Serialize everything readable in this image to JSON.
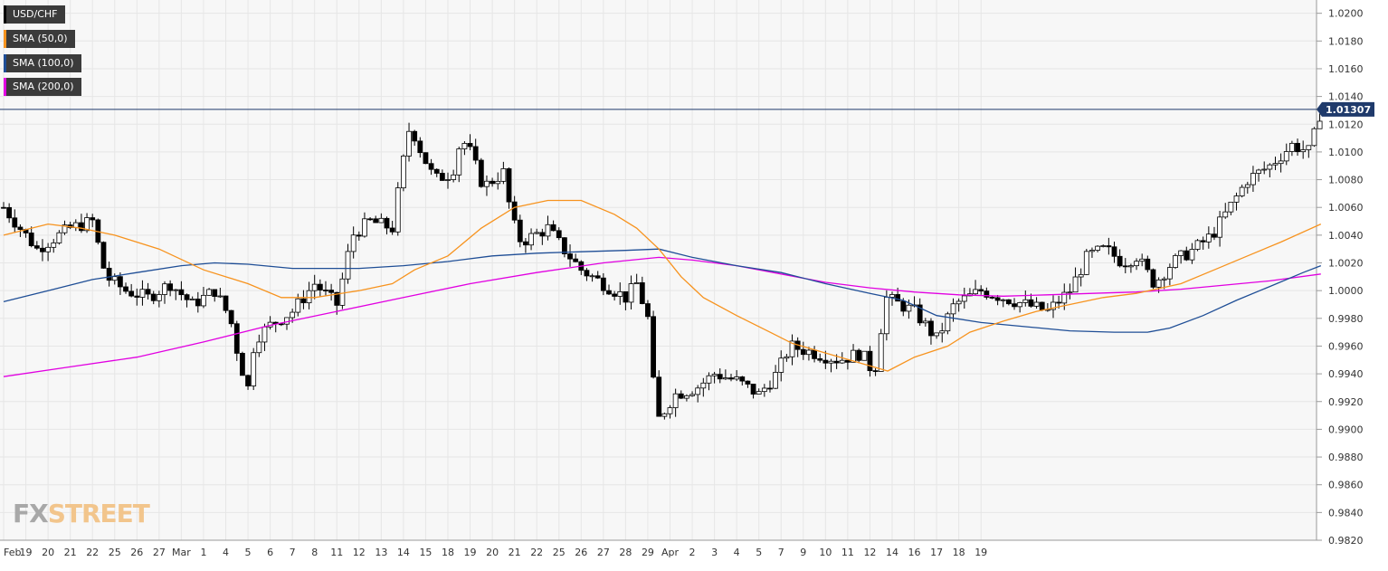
{
  "chart_data": {
    "type": "candlestick",
    "symbol": "USD/CHF",
    "ylim": [
      0.982,
      1.0205
    ],
    "y_ticks": [
      "1.0200",
      "1.0180",
      "1.0160",
      "1.0140",
      "1.0120",
      "1.0100",
      "1.0080",
      "1.0060",
      "1.0040",
      "1.0020",
      "1.0000",
      "0.9980",
      "0.9960",
      "0.9940",
      "0.9920",
      "0.9900",
      "0.9880",
      "0.9860",
      "0.9840",
      "0.9820"
    ],
    "x_ticks": [
      "Feb",
      "19",
      "20",
      "21",
      "22",
      "25",
      "26",
      "27",
      "Mar",
      "1",
      "4",
      "5",
      "6",
      "7",
      "8",
      "11",
      "12",
      "13",
      "14",
      "15",
      "18",
      "19",
      "20",
      "21",
      "22",
      "25",
      "26",
      "27",
      "28",
      "29",
      "Apr",
      "2",
      "3",
      "4",
      "5",
      "7",
      "9",
      "10",
      "11",
      "12",
      "14",
      "16",
      "17",
      "18",
      "19"
    ],
    "current_price": 1.01307,
    "current_price_label": "1.01307",
    "legend": [
      "USD/CHF",
      "SMA (50,0)",
      "SMA (100,0)",
      "SMA (200,0)"
    ],
    "colors": {
      "sma50": "#f7931e",
      "sma100": "#1f4e96",
      "sma200": "#e100e1",
      "price_line": "#1f3a6b"
    },
    "price_path": [
      [
        0,
        1.006
      ],
      [
        1.5,
        1.003
      ],
      [
        3,
        1.0045
      ],
      [
        4,
        1.005
      ],
      [
        4.6,
        1.001
      ],
      [
        5.5,
        1.0
      ],
      [
        6.5,
        0.9995
      ],
      [
        7.5,
        1.0005
      ],
      [
        8.5,
        0.999
      ],
      [
        9.5,
        1.0
      ],
      [
        10.2,
        0.998
      ],
      [
        10.6,
        0.995
      ],
      [
        11.0,
        0.993
      ],
      [
        11.3,
        0.9965
      ],
      [
        12,
        0.9975
      ],
      [
        13,
        0.9985
      ],
      [
        14,
        1.0005
      ],
      [
        15,
        0.999
      ],
      [
        15.7,
        1.004
      ],
      [
        16.5,
        1.005
      ],
      [
        17.5,
        1.0045
      ],
      [
        17.9,
        1.0085
      ],
      [
        18.3,
        1.012
      ],
      [
        18.8,
        1.01
      ],
      [
        19.4,
        1.008
      ],
      [
        20.2,
        1.0085
      ],
      [
        20.6,
        1.011
      ],
      [
        21.0,
        1.01
      ],
      [
        21.6,
        1.0075
      ],
      [
        22.5,
        1.0085
      ],
      [
        22.9,
        1.005
      ],
      [
        23.3,
        1.0035
      ],
      [
        24.5,
        1.0045
      ],
      [
        25.2,
        1.003
      ],
      [
        26.0,
        1.0015
      ],
      [
        27.0,
        1.0005
      ],
      [
        28.0,
        0.9995
      ],
      [
        28.5,
        1.0005
      ],
      [
        29.0,
        0.998
      ],
      [
        29.4,
        0.9905
      ],
      [
        30.2,
        0.9925
      ],
      [
        31.2,
        0.993
      ],
      [
        32.0,
        0.994
      ],
      [
        33.0,
        0.9935
      ],
      [
        34.0,
        0.9925
      ],
      [
        34.8,
        0.994
      ],
      [
        35.4,
        0.996
      ],
      [
        36.5,
        0.9955
      ],
      [
        37.6,
        0.995
      ],
      [
        38.6,
        0.9955
      ],
      [
        39.2,
        0.994
      ],
      [
        39.7,
        0.9995
      ],
      [
        41.0,
        0.9985
      ],
      [
        42.0,
        0.9965
      ],
      [
        42.8,
        0.999
      ],
      [
        44.0,
        1.0
      ],
      [
        45.0,
        0.9995
      ],
      [
        46.0,
        0.999
      ],
      [
        47.0,
        0.9985
      ],
      [
        48.0,
        1.0
      ],
      [
        48.8,
        1.0025
      ],
      [
        49.6,
        1.003
      ],
      [
        50.4,
        1.002
      ],
      [
        51.0,
        1.0025
      ],
      [
        51.8,
        1.0005
      ],
      [
        52.6,
        1.002
      ],
      [
        53.6,
        1.003
      ],
      [
        54.4,
        1.004
      ],
      [
        55.2,
        1.006
      ],
      [
        56.0,
        1.008
      ],
      [
        57.0,
        1.009
      ],
      [
        58.0,
        1.0105
      ],
      [
        58.8,
        1.01
      ],
      [
        59.3,
        1.013
      ]
    ],
    "sma50_path": [
      [
        0,
        1.004
      ],
      [
        2,
        1.0048
      ],
      [
        3.5,
        1.0045
      ],
      [
        5,
        1.004
      ],
      [
        7,
        1.003
      ],
      [
        9,
        1.0015
      ],
      [
        11,
        1.0005
      ],
      [
        12.5,
        0.9995
      ],
      [
        14,
        0.9995
      ],
      [
        16,
        1.0
      ],
      [
        17.5,
        1.0005
      ],
      [
        18.5,
        1.0015
      ],
      [
        20,
        1.0025
      ],
      [
        21.5,
        1.0045
      ],
      [
        23,
        1.006
      ],
      [
        24.5,
        1.0065
      ],
      [
        26,
        1.0065
      ],
      [
        27.5,
        1.0055
      ],
      [
        28.5,
        1.0045
      ],
      [
        29.5,
        1.003
      ],
      [
        30.5,
        1.001
      ],
      [
        31.5,
        0.9995
      ],
      [
        33,
        0.9982
      ],
      [
        34.5,
        0.997
      ],
      [
        35.5,
        0.9962
      ],
      [
        37,
        0.9955
      ],
      [
        38.5,
        0.9948
      ],
      [
        39.8,
        0.9942
      ],
      [
        41,
        0.9952
      ],
      [
        42.5,
        0.996
      ],
      [
        43.5,
        0.997
      ],
      [
        45,
        0.9978
      ],
      [
        46.5,
        0.9985
      ],
      [
        48,
        0.999
      ],
      [
        49.5,
        0.9995
      ],
      [
        51,
        0.9998
      ],
      [
        53,
        1.0005
      ],
      [
        54.5,
        1.0015
      ],
      [
        56,
        1.0025
      ],
      [
        57.5,
        1.0035
      ],
      [
        59.3,
        1.0048
      ]
    ],
    "sma100_path": [
      [
        0,
        0.9992
      ],
      [
        2,
        1.0
      ],
      [
        4,
        1.0008
      ],
      [
        6,
        1.0013
      ],
      [
        8,
        1.0018
      ],
      [
        9.5,
        1.002
      ],
      [
        11,
        1.0019
      ],
      [
        13,
        1.0016
      ],
      [
        15,
        1.0016
      ],
      [
        16,
        1.0016
      ],
      [
        18,
        1.0018
      ],
      [
        20,
        1.0021
      ],
      [
        22,
        1.0025
      ],
      [
        24,
        1.0027
      ],
      [
        26,
        1.0028
      ],
      [
        28,
        1.0029
      ],
      [
        29.5,
        1.003
      ],
      [
        31,
        1.0024
      ],
      [
        33,
        1.0018
      ],
      [
        35,
        1.0013
      ],
      [
        37,
        1.0005
      ],
      [
        39,
        0.9998
      ],
      [
        40.5,
        0.9993
      ],
      [
        42,
        0.9982
      ],
      [
        44,
        0.9977
      ],
      [
        46,
        0.9974
      ],
      [
        48,
        0.9971
      ],
      [
        50,
        0.997
      ],
      [
        51.5,
        0.997
      ],
      [
        52.5,
        0.9973
      ],
      [
        54,
        0.9982
      ],
      [
        55.5,
        0.9993
      ],
      [
        57,
        1.0003
      ],
      [
        58.5,
        1.0013
      ],
      [
        59.3,
        1.0018
      ]
    ],
    "sma200_path": [
      [
        0,
        0.9938
      ],
      [
        3,
        0.9945
      ],
      [
        6,
        0.9952
      ],
      [
        9,
        0.9963
      ],
      [
        12,
        0.9975
      ],
      [
        15,
        0.9985
      ],
      [
        18,
        0.9995
      ],
      [
        21,
        1.0005
      ],
      [
        24,
        1.0013
      ],
      [
        27,
        1.002
      ],
      [
        29.5,
        1.0024
      ],
      [
        31,
        1.0022
      ],
      [
        33,
        1.0018
      ],
      [
        35,
        1.0012
      ],
      [
        37,
        1.0006
      ],
      [
        39,
        1.0002
      ],
      [
        41,
        0.9999
      ],
      [
        43,
        0.9997
      ],
      [
        45,
        0.9996
      ],
      [
        47,
        0.9997
      ],
      [
        49,
        0.9998
      ],
      [
        51,
        0.9999
      ],
      [
        53,
        1.0001
      ],
      [
        55,
        1.0004
      ],
      [
        57,
        1.0007
      ],
      [
        59.3,
        1.0012
      ]
    ]
  }
}
